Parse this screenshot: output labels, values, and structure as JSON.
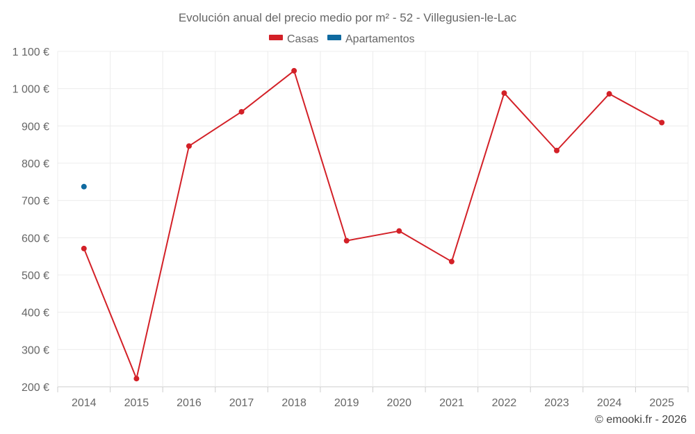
{
  "chart_data": {
    "type": "line",
    "title": "Evolución anual del precio medio por m² - 52 - Villegusien-le-Lac",
    "categories": [
      "2014",
      "2015",
      "2016",
      "2017",
      "2018",
      "2019",
      "2020",
      "2021",
      "2022",
      "2023",
      "2024",
      "2025"
    ],
    "series": [
      {
        "name": "Casas",
        "color": "#d32027",
        "values": [
          571,
          222,
          846,
          938,
          1048,
          592,
          618,
          536,
          988,
          834,
          986,
          909
        ]
      },
      {
        "name": "Apartamentos",
        "color": "#0f6aa0",
        "values": [
          737,
          null,
          null,
          null,
          null,
          null,
          null,
          null,
          null,
          null,
          null,
          null
        ]
      }
    ],
    "ylim": [
      200,
      1100
    ],
    "yticks": [
      200,
      300,
      400,
      500,
      600,
      700,
      800,
      900,
      1000,
      1100
    ],
    "ytick_labels": [
      "200 €",
      "300 €",
      "400 €",
      "500 €",
      "600 €",
      "700 €",
      "800 €",
      "900 €",
      "1 000 €",
      "1 100 €"
    ],
    "xlabel": "",
    "ylabel": "",
    "grid": true,
    "legend_position": "top-center"
  },
  "credit": "© emooki.fr - 2026"
}
